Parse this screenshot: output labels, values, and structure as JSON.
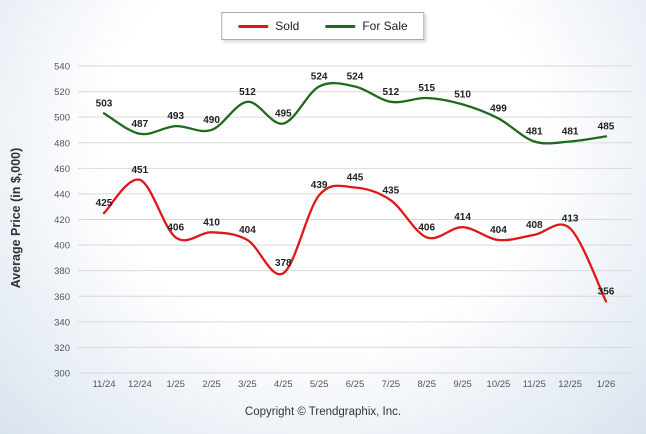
{
  "chart_data": {
    "type": "line",
    "categories": [
      "11/24",
      "12/24",
      "1/25",
      "2/25",
      "3/25",
      "4/25",
      "5/25",
      "6/25",
      "7/25",
      "8/25",
      "9/25",
      "10/25",
      "11/25",
      "12/25",
      "1/26"
    ],
    "series": [
      {
        "name": "Sold",
        "color": "#e01717",
        "values": [
          425,
          451,
          406,
          410,
          404,
          378,
          439,
          445,
          435,
          406,
          414,
          404,
          408,
          413,
          356
        ]
      },
      {
        "name": "For Sale",
        "color": "#1e6b1e",
        "values": [
          503,
          487,
          493,
          490,
          512,
          495,
          524,
          524,
          512,
          515,
          510,
          499,
          481,
          481,
          485
        ]
      }
    ],
    "title": "",
    "xlabel": "",
    "ylabel": "Average Price (in $,000)",
    "ylim": [
      300,
      540
    ],
    "ytick_step": 20,
    "grid": true,
    "legend_position": "top",
    "grid_color": "#d9d9d9",
    "label_color": "#222222"
  },
  "footer": {
    "copyright": "Copyright © Trendgraphix, Inc."
  }
}
